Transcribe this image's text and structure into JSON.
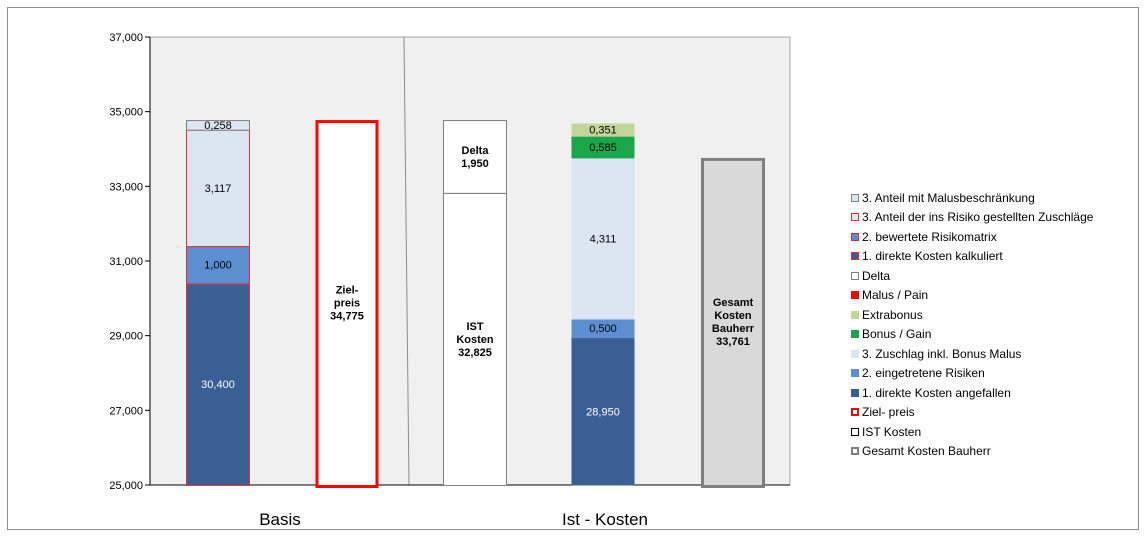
{
  "chart_data": {
    "type": "bar",
    "stacked": true,
    "ylim": [
      25000,
      37000
    ],
    "yticks": [
      25000,
      27000,
      29000,
      31000,
      33000,
      35000,
      37000
    ],
    "ytick_labels": [
      "25,000",
      "27,000",
      "29,000",
      "31,000",
      "33,000",
      "35,000",
      "37,000"
    ],
    "grid": false,
    "legend_position": "right",
    "groups": [
      "Basis",
      "Ist - Kosten"
    ],
    "bars": [
      {
        "group": "Basis",
        "segments": [
          {
            "series": "1. direkte Kosten kalkuliert",
            "value": 30400,
            "label": "30,400",
            "color": "#3a5f95",
            "stroke": "#e03030",
            "label_color": "#ffffff"
          },
          {
            "series": "2. bewertete Risikomatrix",
            "value": 1000,
            "label": "1,000",
            "color": "#5b8fd2",
            "stroke": "#e03030",
            "label_color": "#000000"
          },
          {
            "series": "3. Anteil der ins Risiko gestellten Zuschläge",
            "value": 3117,
            "label": "3,117",
            "color": "#dce6f2",
            "stroke": "#e03030",
            "label_color": "#000000"
          },
          {
            "series": "3. Anteil mit Malusbeschränkung",
            "value": 258,
            "label": "0,258",
            "color": "#dce6f2",
            "stroke": "#7f7f7f",
            "label_color": "#000000"
          }
        ]
      },
      {
        "group": "Basis",
        "segments": [
          {
            "series": "Ziel- preis",
            "value": 34775,
            "label_lines": [
              "Ziel-",
              "preis",
              "34,775"
            ],
            "color": "#ffffff",
            "stroke": "#ff0000",
            "stroke_width": 3,
            "label_color": "#000000"
          }
        ]
      },
      {
        "group": "Ist - Kosten",
        "segments": [
          {
            "series": "IST Kosten",
            "value": 32825,
            "label_lines": [
              "IST",
              "Kosten",
              "32,825"
            ],
            "color": "#ffffff",
            "stroke": "#7f7f7f",
            "label_color": "#000000"
          },
          {
            "series": "Delta",
            "value": 1950,
            "label_lines": [
              "Delta",
              "1,950"
            ],
            "color": "#ffffff",
            "stroke": "#7f7f7f",
            "label_color": "#000000"
          }
        ]
      },
      {
        "group": "Ist - Kosten",
        "segments": [
          {
            "series": "1. direkte Kosten angefallen",
            "value": 28950,
            "label": "28,950",
            "color": "#3a5f95",
            "label_color": "#ffffff"
          },
          {
            "series": "2. eingetretene Risiken",
            "value": 500,
            "label": "0,500",
            "color": "#5b8fd2",
            "label_color": "#000000"
          },
          {
            "series": "3. Zuschlag inkl. Bonus Malus",
            "value": 4311,
            "label": "4,311",
            "color": "#dce6f2",
            "label_color": "#000000"
          },
          {
            "series": "Bonus / Gain",
            "value": 585,
            "label": "0,585",
            "color": "#1aa64a",
            "label_color": "#000000"
          },
          {
            "series": "Extrabonus",
            "value": 351,
            "label": "0,351",
            "color": "#c2d69b",
            "label_color": "#000000"
          }
        ]
      },
      {
        "group": "Ist - Kosten",
        "segments": [
          {
            "series": "Gesamt Kosten Bauherr",
            "value": 33761,
            "label_lines": [
              "Gesamt",
              "Kosten",
              "Bauherr",
              "33,761"
            ],
            "color": "#d9d9d9",
            "stroke": "#7f7f7f",
            "stroke_width": 3,
            "label_color": "#000000"
          }
        ]
      }
    ],
    "legend": [
      {
        "label": "3. Anteil mit Malusbeschränkung",
        "fill": "#dce6f2",
        "border": "#7f7f7f"
      },
      {
        "label": "3. Anteil der ins Risiko gestellten Zuschläge",
        "fill": "#dce6f2",
        "border": "#e03030"
      },
      {
        "label": "2. bewertete Risikomatrix",
        "fill": "#5b8fd2",
        "border": "#e03030"
      },
      {
        "label": "1. direkte Kosten kalkuliert",
        "fill": "#3a5f95",
        "border": "#e03030"
      },
      {
        "label": "Delta",
        "fill": "#ffffff",
        "border": "#7f7f7f"
      },
      {
        "label": "Malus / Pain",
        "fill": "#ff0000",
        "border": "#ff0000"
      },
      {
        "label": "Extrabonus",
        "fill": "#c2d69b",
        "border": "#c2d69b"
      },
      {
        "label": "Bonus / Gain",
        "fill": "#1aa64a",
        "border": "#1aa64a"
      },
      {
        "label": "3. Zuschlag  inkl. Bonus Malus",
        "fill": "#dce6f2",
        "border": "#dce6f2"
      },
      {
        "label": "2. eingetretene Risiken",
        "fill": "#5b8fd2",
        "border": "#5b8fd2"
      },
      {
        "label": "1. direkte Kosten angefallen",
        "fill": "#3a5f95",
        "border": "#3a5f95"
      },
      {
        "label": "Ziel- preis",
        "fill": "#ffffff",
        "border": "#ff0000"
      },
      {
        "label": "IST Kosten",
        "fill": "#ffffff",
        "border": "#000000"
      },
      {
        "label": "Gesamt Kosten Bauherr",
        "fill": "#ffffff",
        "border": "#7f7f7f"
      }
    ]
  }
}
